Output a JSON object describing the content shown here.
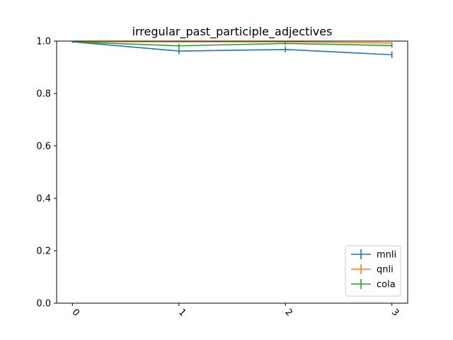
{
  "chart_data": {
    "type": "line",
    "title": "irregular_past_participle_adjectives",
    "xlabel": "",
    "ylabel": "",
    "x": [
      "0",
      "1",
      "2",
      "3"
    ],
    "xtick_rotation_deg": 45,
    "ylim": [
      0,
      1
    ],
    "yticks": [
      "0.0",
      "0.2",
      "0.4",
      "0.6",
      "0.8",
      "1.0"
    ],
    "grid": false,
    "legend_position": "lower-right",
    "series": [
      {
        "name": "mnli",
        "color": "#1f77b4",
        "values": [
          0.997,
          0.962,
          0.968,
          0.948
        ],
        "errors": [
          0.004,
          0.012,
          0.011,
          0.013
        ]
      },
      {
        "name": "qnli",
        "color": "#ff7f0e",
        "values": [
          0.998,
          0.997,
          0.997,
          0.993
        ],
        "errors": [
          0.002,
          0.002,
          0.002,
          0.004
        ]
      },
      {
        "name": "cola",
        "color": "#2ca02c",
        "values": [
          0.997,
          0.982,
          0.991,
          0.983
        ],
        "errors": [
          0.003,
          0.008,
          0.006,
          0.008
        ]
      }
    ]
  }
}
